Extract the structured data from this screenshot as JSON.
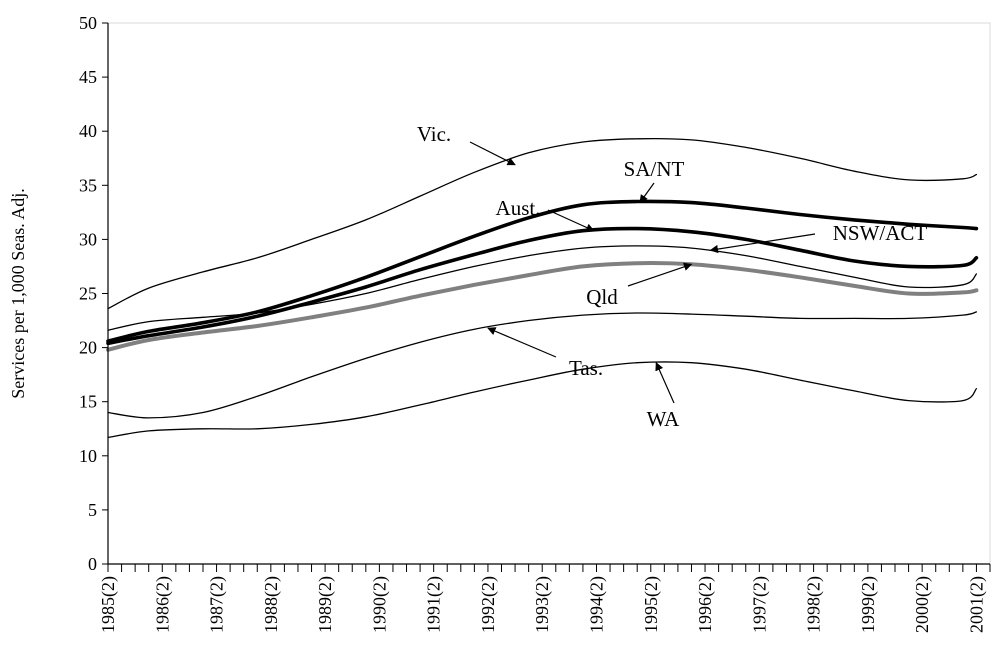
{
  "chart_data": {
    "type": "line",
    "title": "",
    "xlabel": "",
    "ylabel": "Services per 1,000 Seas. Adj.",
    "ylim": [
      0,
      50
    ],
    "yticks": [
      0,
      5,
      10,
      15,
      20,
      25,
      30,
      35,
      40,
      45,
      50
    ],
    "x_tick_labels": [
      "1985(2)",
      "1986(2)",
      "1987(2)",
      "1988(2)",
      "1989(2)",
      "1990(2)",
      "1991(2)",
      "1992(2)",
      "1993(2)",
      "1994(2)",
      "1995(2)",
      "1996(2)",
      "1997(2)",
      "1998(2)",
      "1999(2)",
      "2000(2)",
      "2001(2)"
    ],
    "grid": false,
    "legend": "none (series labelled by annotations with arrows)",
    "x": [
      1985.25,
      1986.0,
      1987.0,
      1988.0,
      1989.0,
      1990.0,
      1991.0,
      1992.0,
      1993.0,
      1994.0,
      1995.0,
      1996.0,
      1997.0,
      1998.0,
      1999.0,
      2000.0,
      2001.0,
      2001.25
    ],
    "series": [
      {
        "name": "Vic.",
        "color": "#000000",
        "weight": "thin",
        "values": [
          23.6,
          25.5,
          27.0,
          28.3,
          30.0,
          31.8,
          34.0,
          36.2,
          38.0,
          39.0,
          39.3,
          39.2,
          38.5,
          37.5,
          36.3,
          35.5,
          35.6,
          36.0
        ]
      },
      {
        "name": "SA/NT",
        "color": "#000000",
        "weight": "thick",
        "values": [
          20.6,
          21.5,
          22.3,
          23.3,
          24.8,
          26.5,
          28.4,
          30.3,
          32.0,
          33.2,
          33.5,
          33.4,
          32.9,
          32.3,
          31.8,
          31.4,
          31.1,
          31.0
        ]
      },
      {
        "name": "Aust.",
        "color": "#000000",
        "weight": "thick",
        "values": [
          20.4,
          21.1,
          21.9,
          22.9,
          24.2,
          25.6,
          27.2,
          28.6,
          29.9,
          30.8,
          31.0,
          30.7,
          30.0,
          29.0,
          28.0,
          27.5,
          27.6,
          28.3
        ]
      },
      {
        "name": "NSW/ACT",
        "color": "#000000",
        "weight": "thin",
        "values": [
          21.6,
          22.4,
          22.8,
          23.2,
          24.0,
          25.0,
          26.3,
          27.5,
          28.5,
          29.2,
          29.4,
          29.2,
          28.5,
          27.5,
          26.5,
          25.6,
          25.8,
          26.8
        ]
      },
      {
        "name": "Qld",
        "color": "#808080",
        "weight": "thick",
        "values": [
          19.8,
          20.7,
          21.4,
          22.0,
          22.8,
          23.7,
          24.8,
          25.8,
          26.7,
          27.5,
          27.8,
          27.7,
          27.2,
          26.5,
          25.7,
          25.0,
          25.1,
          25.3
        ]
      },
      {
        "name": "Tas.",
        "color": "#000000",
        "weight": "thin",
        "values": [
          14.0,
          13.5,
          14.0,
          15.5,
          17.3,
          19.0,
          20.5,
          21.7,
          22.5,
          23.0,
          23.2,
          23.1,
          22.9,
          22.7,
          22.7,
          22.7,
          23.0,
          23.3
        ]
      },
      {
        "name": "WA",
        "color": "#000000",
        "weight": "thin",
        "values": [
          11.7,
          12.3,
          12.5,
          12.5,
          12.9,
          13.6,
          14.7,
          15.9,
          17.0,
          18.0,
          18.6,
          18.6,
          18.0,
          17.0,
          16.0,
          15.1,
          15.1,
          16.2
        ]
      }
    ],
    "annotations": [
      {
        "text": "Vic.",
        "series": "Vic."
      },
      {
        "text": "SA/NT",
        "series": "SA/NT"
      },
      {
        "text": "Aust.",
        "series": "Aust."
      },
      {
        "text": "NSW/ACT",
        "series": "NSW/ACT"
      },
      {
        "text": "Qld",
        "series": "Qld"
      },
      {
        "text": "Tas.",
        "series": "Tas."
      },
      {
        "text": "WA",
        "series": "WA"
      }
    ]
  }
}
